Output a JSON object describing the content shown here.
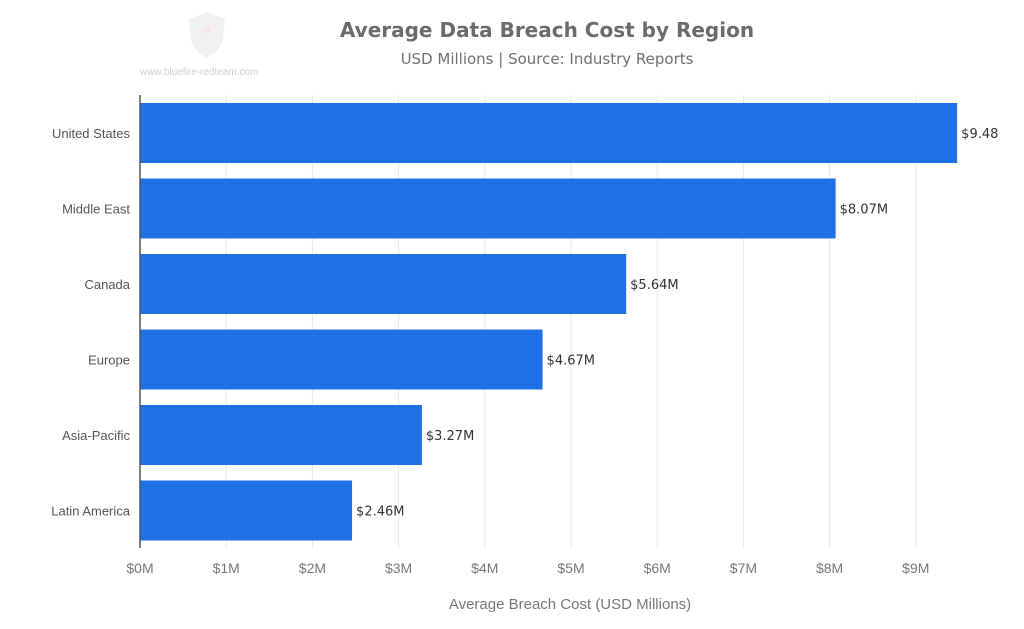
{
  "watermark": "www.bluefire-redteam.com",
  "chart_data": {
    "type": "bar",
    "orientation": "horizontal",
    "title": "Average Data Breach Cost by Region",
    "subtitle": "USD Millions | Source: Industry Reports",
    "xlabel": "Average Breach Cost (USD Millions)",
    "ylabel": "",
    "categories": [
      "United States",
      "Middle East",
      "Canada",
      "Europe",
      "Asia-Pacific",
      "Latin America"
    ],
    "values": [
      9.48,
      8.07,
      5.64,
      4.67,
      3.27,
      2.46
    ],
    "data_labels": [
      "$9.48",
      "$8.07M",
      "$5.64M",
      "$4.67M",
      "$3.27M",
      "$2.46M"
    ],
    "xticks": [
      "$0M",
      "$1M",
      "$2M",
      "$3M",
      "$4M",
      "$5M",
      "$6M",
      "$7M",
      "$8M",
      "$9M"
    ],
    "xlim": [
      0,
      9.6
    ],
    "grid": "vertical",
    "bar_color": "#1f6fe5"
  }
}
